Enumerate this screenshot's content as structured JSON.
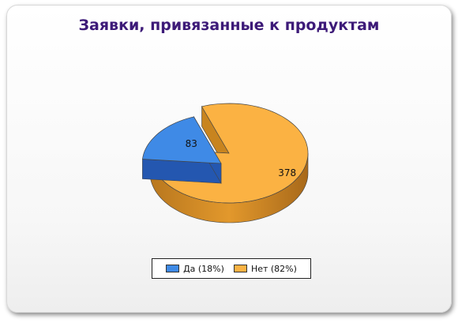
{
  "chart_data": {
    "type": "pie",
    "title": "Заявки, привязанные к продуктам",
    "categories": [
      "Да",
      "Нет"
    ],
    "values": [
      83,
      378
    ],
    "value_labels": [
      "83",
      "378"
    ],
    "legend_labels": [
      "Да (18%)",
      "Нет (82%)"
    ],
    "colors": [
      "#3f8ae6",
      "#fbb243"
    ],
    "legend_placement": "bottom",
    "style": "3d-exploded"
  }
}
